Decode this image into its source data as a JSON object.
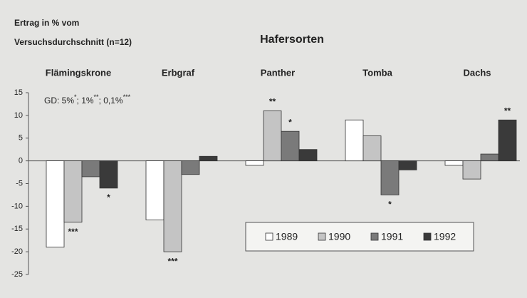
{
  "chart_data": {
    "type": "bar",
    "title": "Hafersorten",
    "ylabel": [
      "Ertrag in % vom",
      "Versuchsdurchschnitt (n=12)"
    ],
    "gd_note": [
      "GD: 5%",
      "*",
      "; 1%",
      "**",
      "; 0,1%",
      "***"
    ],
    "categories": [
      "Flämingskrone",
      "Erbgraf",
      "Panther",
      "Tomba",
      "Dachs"
    ],
    "series": [
      {
        "name": "1989",
        "color": "#ffffff",
        "values": [
          -19,
          -13,
          -1,
          9,
          -1
        ],
        "significance": [
          null,
          null,
          null,
          null,
          null
        ]
      },
      {
        "name": "1990",
        "color": "#c4c4c4",
        "values": [
          -13.5,
          -20,
          11,
          5.5,
          -4
        ],
        "significance": [
          "***",
          "***",
          "**",
          null,
          null
        ]
      },
      {
        "name": "1991",
        "color": "#7a7a7a",
        "values": [
          -3.5,
          -3,
          6.5,
          -7.5,
          1.5
        ],
        "significance": [
          null,
          null,
          "*",
          "*",
          null
        ]
      },
      {
        "name": "1992",
        "color": "#3a3a3a",
        "values": [
          -6,
          1,
          2.5,
          -2,
          9
        ],
        "significance": [
          "*",
          null,
          null,
          null,
          "**"
        ]
      }
    ],
    "ylim": [
      -25,
      15
    ],
    "yticks": [
      -25,
      -20,
      -15,
      -10,
      -5,
      0,
      5,
      10,
      15
    ],
    "grid": false,
    "legend": "lower right"
  }
}
